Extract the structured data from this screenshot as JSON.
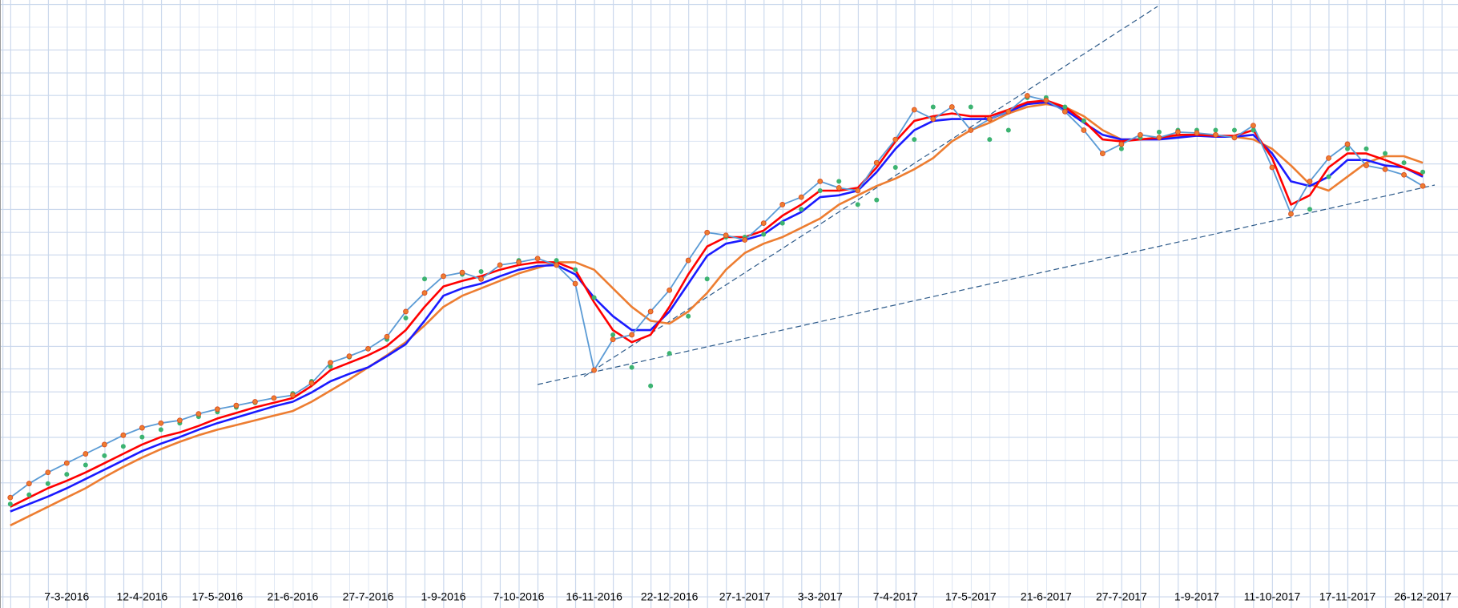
{
  "chart_data": {
    "type": "line",
    "categories": [
      null,
      null,
      null,
      "7-3-2016",
      null,
      null,
      null,
      "12-4-2016",
      null,
      null,
      null,
      "17-5-2016",
      null,
      null,
      null,
      "21-6-2016",
      null,
      null,
      null,
      "27-7-2016",
      null,
      null,
      null,
      "1-9-2016",
      null,
      null,
      null,
      "7-10-2016",
      null,
      null,
      null,
      "16-11-2016",
      null,
      null,
      null,
      "22-12-2016",
      null,
      null,
      null,
      "27-1-2017",
      null,
      null,
      null,
      "3-3-2017",
      null,
      null,
      null,
      "7-4-2017",
      null,
      null,
      null,
      "17-5-2017",
      null,
      null,
      null,
      "21-6-2017",
      null,
      null,
      null,
      "27-7-2017",
      null,
      null,
      null,
      "1-9-2017",
      null,
      null,
      null,
      "11-10-2017",
      null,
      null,
      null,
      "17-11-2017",
      null,
      null,
      null,
      "26-12-2017"
    ],
    "ylim": [
      0,
      630
    ],
    "series": [
      {
        "color": "#ed7d31",
        "line": true,
        "marker": false,
        "values": [
          65,
          75,
          85,
          95,
          105,
          117,
          128,
          138,
          147,
          155,
          162,
          168,
          173,
          178,
          183,
          188,
          198,
          210,
          222,
          235,
          248,
          262,
          280,
          300,
          312,
          320,
          328,
          336,
          342,
          348,
          348,
          340,
          320,
          300,
          285,
          282,
          295,
          315,
          340,
          358,
          368,
          375,
          385,
          395,
          410,
          420,
          430,
          438,
          448,
          460,
          478,
          490,
          498,
          508,
          515,
          518,
          515,
          505,
          490,
          480,
          480,
          482,
          484,
          484,
          484,
          483,
          480,
          470,
          452,
          432,
          425,
          440,
          455,
          462,
          462,
          455
        ]
      },
      {
        "color": "#1a1aff",
        "line": true,
        "marker": false,
        "values": [
          80,
          88,
          96,
          105,
          115,
          125,
          135,
          145,
          153,
          160,
          168,
          175,
          181,
          187,
          193,
          198,
          208,
          220,
          228,
          235,
          247,
          260,
          285,
          312,
          320,
          325,
          333,
          340,
          344,
          345,
          335,
          310,
          290,
          275,
          275,
          295,
          325,
          355,
          368,
          372,
          378,
          392,
          402,
          418,
          420,
          425,
          445,
          470,
          490,
          500,
          502,
          502,
          502,
          510,
          518,
          520,
          512,
          498,
          485,
          480,
          480,
          480,
          482,
          484,
          483,
          483,
          485,
          465,
          435,
          430,
          440,
          458,
          458,
          452,
          450,
          440
        ]
      },
      {
        "color": "#ff0000",
        "line": true,
        "marker": false,
        "values": [
          85,
          95,
          105,
          113,
          122,
          132,
          142,
          152,
          160,
          165,
          172,
          180,
          186,
          192,
          197,
          202,
          215,
          232,
          240,
          248,
          258,
          275,
          300,
          322,
          328,
          333,
          340,
          345,
          348,
          348,
          340,
          305,
          275,
          262,
          270,
          300,
          335,
          365,
          375,
          375,
          382,
          398,
          410,
          425,
          425,
          428,
          450,
          478,
          500,
          505,
          508,
          505,
          505,
          512,
          520,
          522,
          515,
          500,
          480,
          478,
          480,
          482,
          485,
          485,
          484,
          484,
          490,
          460,
          410,
          420,
          450,
          465,
          465,
          458,
          450,
          442
        ]
      },
      {
        "color": "#3cb371",
        "line": false,
        "marker": true,
        "values": [
          88,
          98,
          110,
          120,
          130,
          140,
          150,
          160,
          168,
          175,
          182,
          187,
          192,
          197,
          202,
          207,
          220,
          236,
          246,
          255,
          265,
          288,
          330,
          333,
          335,
          338,
          345,
          350,
          352,
          350,
          340,
          310,
          270,
          235,
          215,
          250,
          290,
          330,
          375,
          375,
          378,
          390,
          405,
          425,
          435,
          410,
          415,
          450,
          480,
          515,
          515,
          515,
          480,
          490,
          525,
          525,
          515,
          500,
          465,
          470,
          482,
          488,
          490,
          490,
          490,
          490,
          490,
          450,
          400,
          405,
          440,
          470,
          470,
          465,
          455,
          445
        ]
      },
      {
        "color": "#ed7d31",
        "line_color": "#5b9bd5",
        "line": true,
        "marker": true,
        "values": [
          95,
          110,
          122,
          132,
          142,
          152,
          162,
          170,
          175,
          178,
          185,
          190,
          194,
          198,
          202,
          205,
          218,
          240,
          247,
          255,
          268,
          295,
          315,
          333,
          337,
          330,
          345,
          348,
          352,
          345,
          325,
          232,
          265,
          270,
          295,
          318,
          350,
          380,
          377,
          372,
          390,
          410,
          418,
          435,
          428,
          425,
          455,
          480,
          512,
          502,
          515,
          490,
          502,
          510,
          527,
          522,
          510,
          490,
          465,
          475,
          485,
          482,
          488,
          487,
          485,
          482,
          495,
          450,
          400,
          435,
          460,
          475,
          452,
          448,
          442,
          430
        ]
      }
    ]
  }
}
